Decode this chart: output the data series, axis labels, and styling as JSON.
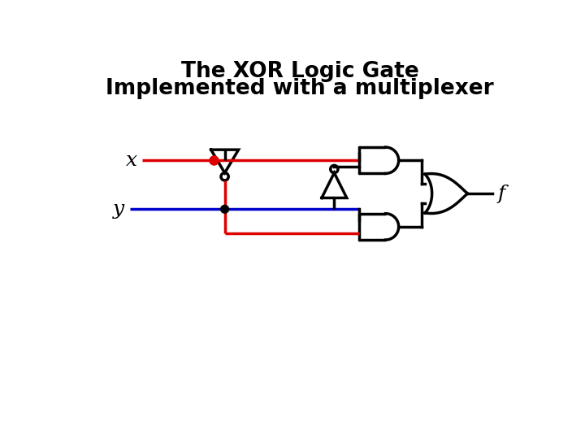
{
  "title_line1": "The XOR Logic Gate",
  "title_line2": "Implemented with a multiplexer",
  "title_fontsize": 19,
  "bg_color": "#ffffff",
  "label_x": "x",
  "label_y": "y",
  "label_f": "f",
  "red_color": "#dd0000",
  "blue_color": "#0000cc",
  "black_color": "#000000",
  "line_width": 2.5
}
